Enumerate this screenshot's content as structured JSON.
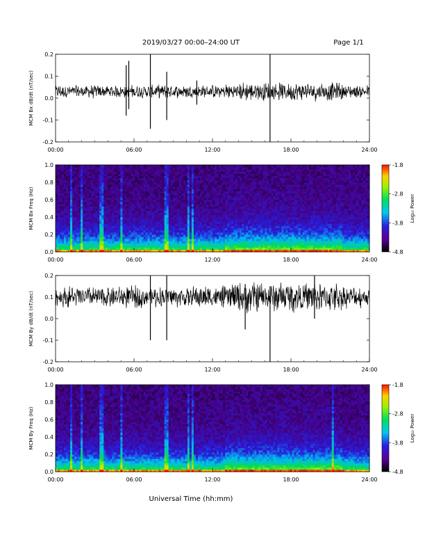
{
  "header": {
    "date_range": "2019/03/27  00:00–24:00 UT",
    "page": "Page 1/1"
  },
  "footer": {
    "xlabel": "Universal Time (hh:mm)"
  },
  "colorbar": {
    "label": "Log₁₀ Power",
    "ticks": [
      "-1.8",
      "-2.8",
      "-3.8",
      "-4.8"
    ],
    "scale": "rainbow (black → purple → blue → cyan → green → yellow → red)"
  },
  "chart_data": [
    {
      "type": "line",
      "ylabel": "MCM Bx dB/dt (nT/sec)",
      "xlim": [
        0,
        24
      ],
      "ylim": [
        -0.2,
        0.2
      ],
      "x_ticks": [
        "00:00",
        "06:00",
        "12:00",
        "18:00",
        "24:00"
      ],
      "y_ticks": [
        "0.2",
        "0.1",
        "0.0",
        "-0.1",
        "-0.2"
      ],
      "baseline": 0.03,
      "noise_amplitude": 0.015,
      "spikes": [
        {
          "t": 5.4,
          "min": -0.08,
          "max": 0.15
        },
        {
          "t": 5.6,
          "min": -0.05,
          "max": 0.17
        },
        {
          "t": 7.25,
          "min": -0.14,
          "max": 0.2
        },
        {
          "t": 8.5,
          "min": -0.1,
          "max": 0.12
        },
        {
          "t": 16.4,
          "min": -0.2,
          "max": 0.2
        },
        {
          "t": 10.8,
          "min": -0.03,
          "max": 0.08
        }
      ]
    },
    {
      "type": "heatmap",
      "ylabel": "MCM Bx Freq (Hz)",
      "xlim": [
        0,
        24
      ],
      "ylim": [
        0,
        1.0
      ],
      "x_ticks": [
        "00:00",
        "06:00",
        "12:00",
        "18:00",
        "24:00"
      ],
      "y_ticks": [
        "1.0",
        "0.8",
        "0.6",
        "0.4",
        "0.2",
        "0.0"
      ],
      "zlim": [
        -4.8,
        -1.8
      ],
      "bright_columns": [
        1.2,
        2.0,
        3.5,
        5.0,
        8.5,
        10.2,
        10.5
      ]
    },
    {
      "type": "line",
      "ylabel": "MCM By dB/dt (nT/sec)",
      "xlim": [
        0,
        24
      ],
      "ylim": [
        -0.2,
        0.2
      ],
      "x_ticks": [
        "00:00",
        "06:00",
        "12:00",
        "18:00",
        "24:00"
      ],
      "y_ticks": [
        "0.2",
        "0.1",
        "0.0",
        "-0.1",
        "-0.2"
      ],
      "baseline": 0.1,
      "noise_amplitude": 0.025,
      "spikes": [
        {
          "t": 7.25,
          "min": -0.1,
          "max": 0.2
        },
        {
          "t": 8.5,
          "min": -0.1,
          "max": 0.2
        },
        {
          "t": 16.4,
          "min": -0.2,
          "max": 0.15
        },
        {
          "t": 14.5,
          "min": -0.05,
          "max": 0.16
        },
        {
          "t": 19.8,
          "min": 0.0,
          "max": 0.2
        }
      ]
    },
    {
      "type": "heatmap",
      "ylabel": "MCM By Freq (Hz)",
      "xlim": [
        0,
        24
      ],
      "ylim": [
        0,
        1.0
      ],
      "x_ticks": [
        "00:00",
        "06:00",
        "12:00",
        "18:00",
        "24:00"
      ],
      "y_ticks": [
        "1.0",
        "0.8",
        "0.6",
        "0.4",
        "0.2",
        "0.0"
      ],
      "zlim": [
        -4.8,
        -1.8
      ],
      "bright_columns": [
        1.2,
        2.0,
        3.5,
        5.0,
        8.5,
        10.2,
        10.5,
        21.2
      ]
    }
  ]
}
